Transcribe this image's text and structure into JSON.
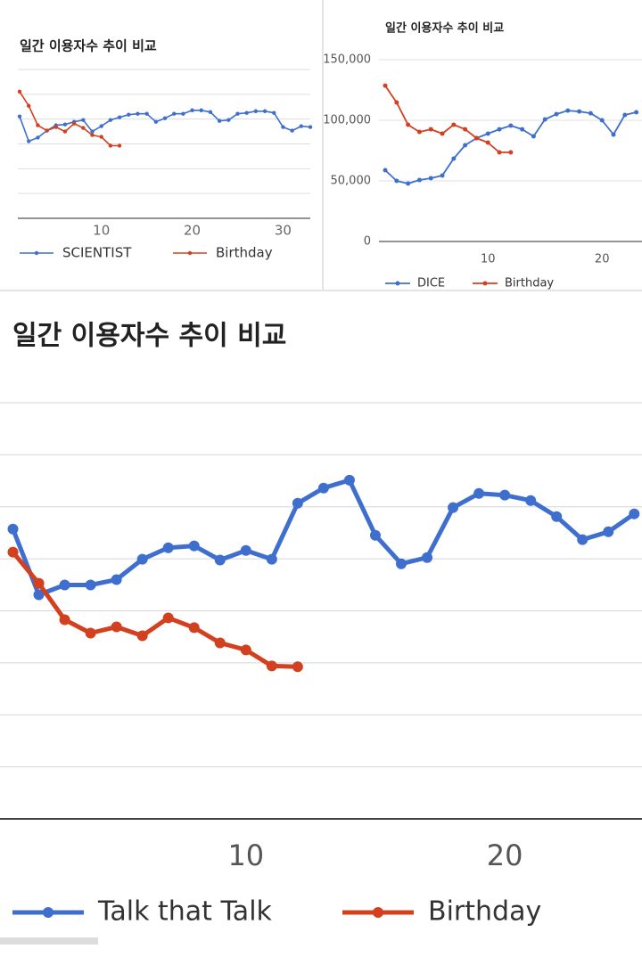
{
  "chart_data": [
    {
      "type": "line",
      "title": "일간 이용자수 추이 비교",
      "xlim": [
        0.8,
        33
      ],
      "xticks": [
        10,
        20,
        30
      ],
      "ylim": [
        0,
        150000
      ],
      "yticks": [
        0,
        25000,
        50000,
        75000,
        100000,
        125000,
        150000
      ],
      "ytick_labels": false,
      "grid": true,
      "series": [
        {
          "name": "SCIENTIST",
          "color": "#3f6fce",
          "x": [
            1,
            2,
            3,
            4,
            5,
            6,
            7,
            8,
            9,
            10,
            11,
            12,
            13,
            14,
            15,
            16,
            17,
            18,
            19,
            20,
            21,
            22,
            23,
            24,
            25,
            26,
            27,
            28,
            29,
            30,
            31,
            32,
            33
          ],
          "values": [
            102700,
            77700,
            81300,
            88400,
            93800,
            94600,
            97300,
            99100,
            87500,
            92900,
            99100,
            101800,
            104500,
            105400,
            105400,
            97300,
            100900,
            105400,
            105400,
            108900,
            108900,
            107100,
            98200,
            99100,
            105400,
            106300,
            108000,
            108000,
            106300,
            92000,
            88400,
            92900,
            92000
          ]
        },
        {
          "name": "Birthday",
          "color": "#d2401f",
          "x": [
            1,
            2,
            3,
            4,
            5,
            6,
            7,
            8,
            9,
            10,
            11,
            12
          ],
          "values": [
            127700,
            113400,
            93800,
            88400,
            92000,
            87500,
            95500,
            91100,
            83900,
            82100,
            73200,
            73200
          ]
        }
      ]
    },
    {
      "type": "line",
      "title": "일간 이용자수 추이 비교",
      "xlim": [
        0.45,
        23.5
      ],
      "xticks": [
        10,
        20
      ],
      "ylim": [
        0,
        150000
      ],
      "yticks": [
        0,
        {
          "value": 50000,
          "label": "50,000"
        },
        {
          "value": 100000,
          "label": "100,000"
        },
        {
          "value": 150000,
          "label": "150,000"
        }
      ],
      "ytick_labels": true,
      "grid": true,
      "series": [
        {
          "name": "DICE",
          "color": "#3f6fce",
          "x": [
            1,
            2,
            3,
            4,
            5,
            6,
            7,
            8,
            9,
            10,
            11,
            12,
            13,
            14,
            15,
            16,
            17,
            18,
            19,
            20,
            21,
            22,
            23
          ],
          "values": [
            58800,
            50000,
            47800,
            50700,
            52200,
            54400,
            68400,
            79400,
            85300,
            89000,
            92600,
            95600,
            92600,
            86800,
            100700,
            105100,
            108000,
            107300,
            105800,
            100000,
            88200,
            104400,
            106600
          ]
        },
        {
          "name": "Birthday",
          "color": "#d2401f",
          "x": [
            1,
            2,
            3,
            4,
            5,
            6,
            7,
            8,
            9,
            10,
            11,
            12
          ],
          "values": [
            128600,
            114700,
            96300,
            90400,
            92600,
            89000,
            96300,
            92600,
            85300,
            81600,
            73500,
            73500
          ]
        }
      ]
    },
    {
      "type": "line",
      "title": "일간 이용자수 추이 비교",
      "xlim": [
        0.5,
        25.3
      ],
      "xticks": [
        10,
        20
      ],
      "ylim": [
        0,
        200000
      ],
      "yticks": [
        0,
        25000,
        50000,
        75000,
        100000,
        125000,
        150000,
        175000,
        200000
      ],
      "ytick_labels": false,
      "grid": true,
      "series": [
        {
          "name": "Talk that Talk",
          "color": "#3f6fce",
          "x": [
            1,
            2,
            3,
            4,
            5,
            6,
            7,
            8,
            9,
            10,
            11,
            12,
            13,
            14,
            15,
            16,
            17,
            18,
            19,
            20,
            21,
            22,
            23,
            24,
            25
          ],
          "values": [
            139300,
            107700,
            112400,
            112400,
            115000,
            124800,
            130300,
            131200,
            124400,
            129000,
            124800,
            151700,
            159000,
            162800,
            136300,
            122600,
            125600,
            149600,
            156400,
            155600,
            153000,
            145300,
            134200,
            138000,
            146600
          ]
        },
        {
          "name": "Birthday",
          "color": "#d2401f",
          "x": [
            1,
            2,
            3,
            4,
            5,
            6,
            7,
            8,
            9,
            10,
            11,
            12
          ],
          "values": [
            128200,
            113200,
            95700,
            89300,
            92300,
            88000,
            96600,
            91900,
            84600,
            81200,
            73500,
            73100
          ]
        }
      ]
    }
  ]
}
